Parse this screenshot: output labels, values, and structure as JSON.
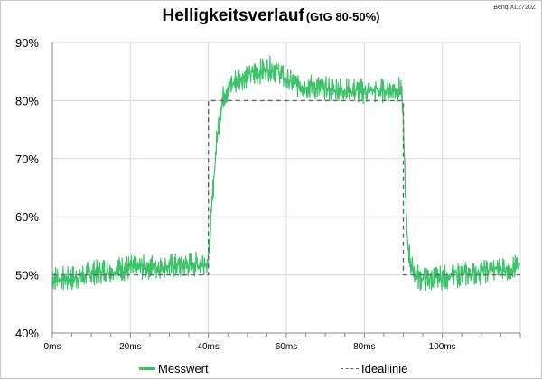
{
  "title": "Helligkeitsverlauf",
  "subtitle": "(GtG 80-50%)",
  "brand": "Benq XL2720Z",
  "colors": {
    "measured": "#3cc36a",
    "ideal": "#666666",
    "grid": "#d9d9d9"
  },
  "chart_data": {
    "type": "line",
    "title": "Helligkeitsverlauf (GtG 80-50%)",
    "xlabel": "",
    "ylabel": "",
    "xlim": [
      0,
      120
    ],
    "ylim": [
      40,
      90
    ],
    "x_ticks": [
      "0ms",
      "20ms",
      "40ms",
      "60ms",
      "80ms",
      "100ms"
    ],
    "x_tick_values": [
      0,
      20,
      40,
      60,
      80,
      100
    ],
    "y_ticks": [
      "40%",
      "50%",
      "60%",
      "70%",
      "80%",
      "90%"
    ],
    "y_tick_values": [
      40,
      50,
      60,
      70,
      80,
      90
    ],
    "grid": true,
    "legend": "bottom",
    "series": [
      {
        "name": "Messwert",
        "style": "solid-noisy",
        "x": [
          0,
          4,
          8,
          10,
          14,
          20,
          30,
          38,
          40,
          40.5,
          41,
          42,
          43,
          44,
          46,
          48,
          50,
          52,
          54,
          56,
          58,
          60,
          62,
          66,
          70,
          76,
          80,
          84,
          88,
          89.5,
          90,
          90.5,
          91,
          92,
          93,
          94,
          96,
          98,
          100,
          104,
          108,
          112,
          116,
          120
        ],
        "values": [
          49.5,
          49.3,
          49.8,
          50.3,
          50.8,
          51.2,
          51.5,
          51.9,
          52.5,
          57,
          63,
          72,
          78,
          81,
          82.8,
          83.8,
          84.3,
          84.7,
          85.2,
          85.5,
          85.0,
          83.5,
          82.8,
          82.4,
          82.0,
          81.8,
          81.6,
          81.7,
          81.9,
          82.0,
          76,
          65,
          56,
          51.5,
          50.2,
          49.5,
          49.2,
          49.3,
          49.6,
          49.9,
          50.3,
          50.8,
          51.2,
          51.3
        ],
        "noise_amplitude": 1.4
      },
      {
        "name": "Ideallinie",
        "style": "dashed",
        "x": [
          0,
          40,
          40,
          90,
          90,
          120
        ],
        "values": [
          50,
          50,
          80,
          80,
          50,
          50
        ]
      }
    ]
  }
}
